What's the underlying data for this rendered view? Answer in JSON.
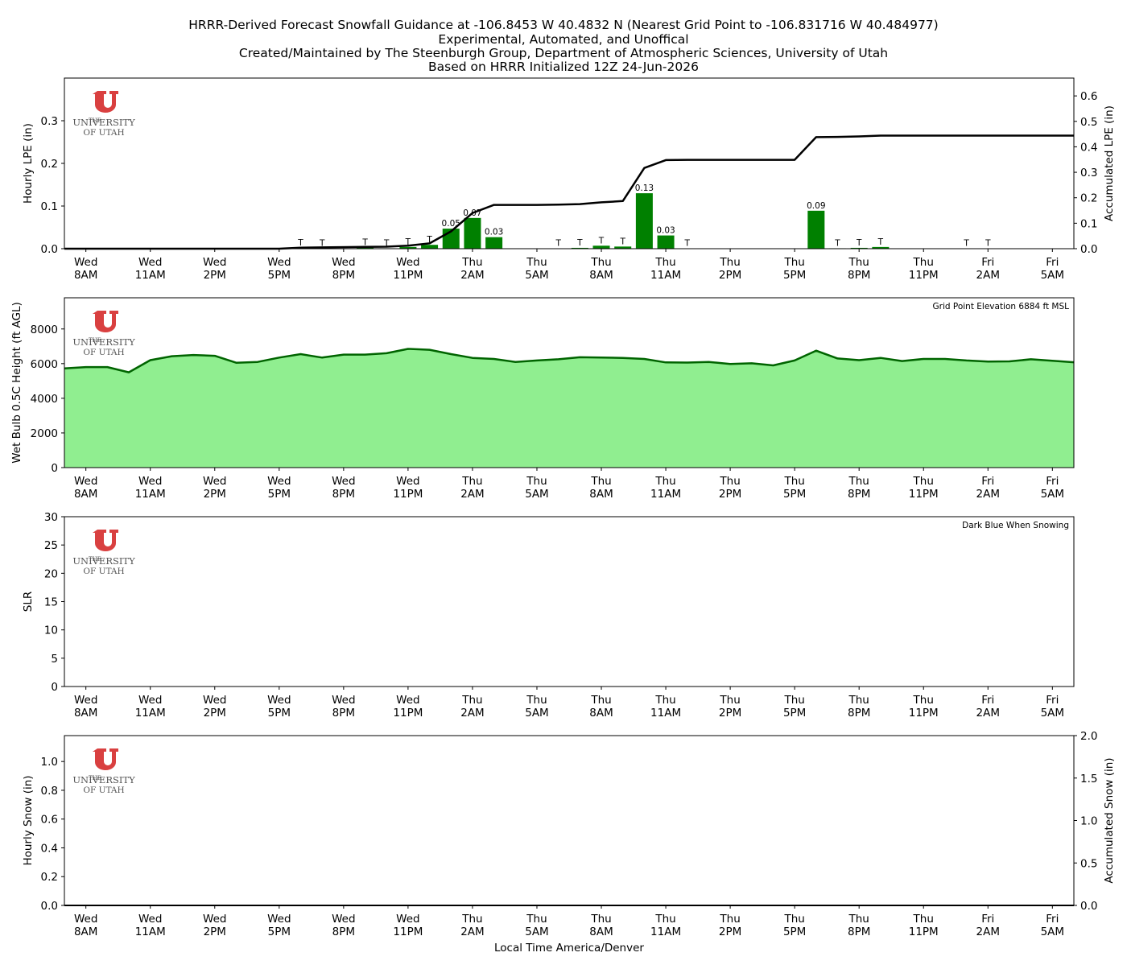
{
  "title_lines": [
    "HRRR-Derived Forecast Snowfall Guidance at -106.8453 W 40.4832 N (Nearest Grid Point to -106.831716 W 40.484977)",
    "Experimental, Automated, and Unoffical",
    "Created/Maintained by The Steenburgh Group, Department of Atmospheric Sciences, University of Utah",
    "Based on HRRR Initialized 12Z 24-Jun-2026"
  ],
  "logo": {
    "line1": "THE",
    "line2": "UNIVERSITY",
    "line3": "OF UTAH",
    "color": "#d94040"
  },
  "x_axis": {
    "xlabel": "Local Time America/Denver",
    "start": "Wed 7AM",
    "end": "Fri 6AM",
    "ticks": [
      {
        "day": "Wed",
        "time": "8AM"
      },
      {
        "day": "Wed",
        "time": "11AM"
      },
      {
        "day": "Wed",
        "time": "2PM"
      },
      {
        "day": "Wed",
        "time": "5PM"
      },
      {
        "day": "Wed",
        "time": "8PM"
      },
      {
        "day": "Wed",
        "time": "11PM"
      },
      {
        "day": "Thu",
        "time": "2AM"
      },
      {
        "day": "Thu",
        "time": "5AM"
      },
      {
        "day": "Thu",
        "time": "8AM"
      },
      {
        "day": "Thu",
        "time": "11AM"
      },
      {
        "day": "Thu",
        "time": "2PM"
      },
      {
        "day": "Thu",
        "time": "5PM"
      },
      {
        "day": "Thu",
        "time": "8PM"
      },
      {
        "day": "Thu",
        "time": "11PM"
      },
      {
        "day": "Fri",
        "time": "2AM"
      },
      {
        "day": "Fri",
        "time": "5AM"
      }
    ]
  },
  "chart_data": [
    {
      "type": "bar",
      "name": "lpe",
      "ylabel": "Hourly LPE (in)",
      "ylim": [
        0,
        0.4
      ],
      "yticks": [
        "0.0",
        "0.1",
        "0.2",
        "0.3"
      ],
      "y2label": "Accumulated LPE (in)",
      "y2lim": [
        0,
        0.67
      ],
      "y2ticks": [
        "0.0",
        "0.1",
        "0.2",
        "0.3",
        "0.4",
        "0.5",
        "0.6"
      ],
      "bar_color": "#008000",
      "line_color": "#000000",
      "bars": [
        {
          "time": "Wed 6PM",
          "value": 0.002,
          "label": "T"
        },
        {
          "time": "Wed 7PM",
          "value": 0.001,
          "label": "T"
        },
        {
          "time": "Wed 9PM",
          "value": 0.003,
          "label": "T"
        },
        {
          "time": "Wed 10PM",
          "value": 0.001,
          "label": "T"
        },
        {
          "time": "Wed 11PM",
          "value": 0.004,
          "label": "T"
        },
        {
          "time": "Thu 12AM",
          "value": 0.009,
          "label": "T"
        },
        {
          "time": "Thu 1AM",
          "value": 0.047,
          "label": "0.05"
        },
        {
          "time": "Thu 2AM",
          "value": 0.072,
          "label": "0.07"
        },
        {
          "time": "Thu 3AM",
          "value": 0.027,
          "label": "0.03"
        },
        {
          "time": "Thu 6AM",
          "value": 0.0005,
          "label": "T"
        },
        {
          "time": "Thu 7AM",
          "value": 0.002,
          "label": "T"
        },
        {
          "time": "Thu 8AM",
          "value": 0.007,
          "label": "T"
        },
        {
          "time": "Thu 9AM",
          "value": 0.005,
          "label": "T"
        },
        {
          "time": "Thu 10AM",
          "value": 0.13,
          "label": "0.13"
        },
        {
          "time": "Thu 11AM",
          "value": 0.031,
          "label": "0.03"
        },
        {
          "time": "Thu 12PM",
          "value": 0.0005,
          "label": "T"
        },
        {
          "time": "Thu 6PM",
          "value": 0.089,
          "label": "0.09"
        },
        {
          "time": "Thu 7PM",
          "value": 0.001,
          "label": "T"
        },
        {
          "time": "Thu 8PM",
          "value": 0.002,
          "label": "T"
        },
        {
          "time": "Thu 9PM",
          "value": 0.004,
          "label": "T"
        },
        {
          "time": "Fri 1AM",
          "value": 0.0005,
          "label": "T"
        },
        {
          "time": "Fri 2AM",
          "value": 0.0005,
          "label": "T"
        }
      ],
      "accumulated": [
        [
          "Wed 7AM",
          0.0
        ],
        [
          "Wed 4PM",
          0.0
        ],
        [
          "Wed 5PM",
          0.0
        ],
        [
          "Wed 6PM",
          0.004
        ],
        [
          "Wed 7PM",
          0.005
        ],
        [
          "Wed 9PM",
          0.007
        ],
        [
          "Wed 10PM",
          0.008
        ],
        [
          "Wed 11PM",
          0.012
        ],
        [
          "Thu 12AM",
          0.021
        ],
        [
          "Thu 1AM",
          0.068
        ],
        [
          "Thu 2AM",
          0.14
        ],
        [
          "Thu 3AM",
          0.172
        ],
        [
          "Thu 4AM",
          0.172
        ],
        [
          "Thu 5AM",
          0.172
        ],
        [
          "Thu 6AM",
          0.173
        ],
        [
          "Thu 7AM",
          0.175
        ],
        [
          "Thu 8AM",
          0.182
        ],
        [
          "Thu 9AM",
          0.187
        ],
        [
          "Thu 10AM",
          0.317
        ],
        [
          "Thu 11AM",
          0.348
        ],
        [
          "Thu 12PM",
          0.349
        ],
        [
          "Thu 5PM",
          0.349
        ],
        [
          "Thu 6PM",
          0.438
        ],
        [
          "Thu 7PM",
          0.439
        ],
        [
          "Thu 8PM",
          0.441
        ],
        [
          "Thu 9PM",
          0.444
        ],
        [
          "Fri 6AM",
          0.444
        ]
      ]
    },
    {
      "type": "area",
      "name": "wetbulb",
      "ylabel": "Wet Bulb 0.5C Height (ft AGL)",
      "ylim": [
        0,
        9800
      ],
      "yticks": [
        "0",
        "2000",
        "4000",
        "6000",
        "8000"
      ],
      "annotation": "Grid Point Elevation 6884 ft MSL",
      "fill_color": "#90ee90",
      "line_color": "#006400",
      "x": [
        "Wed 7AM",
        "Wed 8AM",
        "Wed 9AM",
        "Wed 10AM",
        "Wed 11AM",
        "Wed 12PM",
        "Wed 1PM",
        "Wed 2PM",
        "Wed 3PM",
        "Wed 4PM",
        "Wed 5PM",
        "Wed 6PM",
        "Wed 7PM",
        "Wed 8PM",
        "Wed 9PM",
        "Wed 10PM",
        "Wed 11PM",
        "Thu 12AM",
        "Thu 1AM",
        "Thu 2AM",
        "Thu 3AM",
        "Thu 4AM",
        "Thu 5AM",
        "Thu 6AM",
        "Thu 7AM",
        "Thu 8AM",
        "Thu 9AM",
        "Thu 10AM",
        "Thu 11AM",
        "Thu 12PM",
        "Thu 1PM",
        "Thu 2PM",
        "Thu 3PM",
        "Thu 4PM",
        "Thu 5PM",
        "Thu 6PM",
        "Thu 7PM",
        "Thu 8PM",
        "Thu 9PM",
        "Thu 10PM",
        "Thu 11PM",
        "Fri 12AM",
        "Fri 1AM",
        "Fri 2AM",
        "Fri 3AM",
        "Fri 4AM",
        "Fri 5AM",
        "Fri 6AM"
      ],
      "values": [
        5720,
        5800,
        5800,
        5500,
        6200,
        6430,
        6500,
        6450,
        6050,
        6100,
        6350,
        6550,
        6350,
        6520,
        6520,
        6600,
        6850,
        6800,
        6550,
        6330,
        6270,
        6100,
        6180,
        6250,
        6370,
        6350,
        6330,
        6270,
        6070,
        6060,
        6100,
        5980,
        6020,
        5900,
        6180,
        6750,
        6300,
        6200,
        6330,
        6150,
        6270,
        6270,
        6180,
        6120,
        6130,
        6250,
        6170,
        6080
      ]
    },
    {
      "type": "line",
      "name": "slr",
      "ylabel": "SLR",
      "ylim": [
        0,
        30
      ],
      "yticks": [
        "0",
        "5",
        "10",
        "15",
        "20",
        "25",
        "30"
      ],
      "annotation": "Dark Blue When Snowing",
      "values": []
    },
    {
      "type": "bar",
      "name": "snow",
      "ylabel": "Hourly Snow (in)",
      "ylim": [
        0,
        1.18
      ],
      "yticks": [
        "0.0",
        "0.2",
        "0.4",
        "0.6",
        "0.8",
        "1.0"
      ],
      "y2label": "Accumulated Snow (in)",
      "y2lim": [
        0,
        2.0
      ],
      "y2ticks": [
        "0.0",
        "0.5",
        "1.0",
        "1.5",
        "2.0"
      ],
      "bars": [],
      "accumulated": [
        [
          "Wed 7AM",
          0.0
        ],
        [
          "Fri 6AM",
          0.0
        ]
      ]
    }
  ]
}
